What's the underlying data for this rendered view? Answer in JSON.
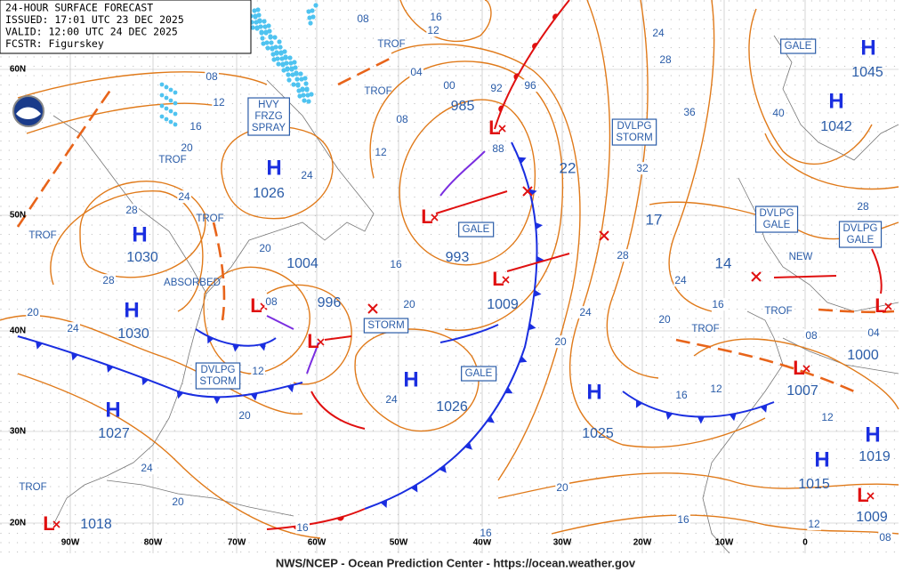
{
  "header": {
    "lines": [
      "24-HOUR SURFACE FORECAST",
      "ISSUED: 17:01 UTC 23 DEC 2025",
      "VALID: 12:00 UTC 24 DEC 2025",
      "FCSTR: Figurskey"
    ]
  },
  "latitude_labels": [
    "60N",
    "50N",
    "40N",
    "30N",
    "20N"
  ],
  "longitude_labels": [
    "90W",
    "80W",
    "70W",
    "60W",
    "50W",
    "40W",
    "30W",
    "20W",
    "10W",
    "0"
  ],
  "highs": [
    {
      "symbol": "H",
      "pressure": 1026
    },
    {
      "symbol": "H",
      "pressure": 1030
    },
    {
      "symbol": "H",
      "pressure": 1030
    },
    {
      "symbol": "H",
      "pressure": 1027
    },
    {
      "symbol": "H",
      "pressure": 1026
    },
    {
      "symbol": "H",
      "pressure": 1025
    },
    {
      "symbol": "H",
      "pressure": 1045
    },
    {
      "symbol": "H",
      "pressure": 1042
    },
    {
      "symbol": "H",
      "pressure": 1019
    },
    {
      "symbol": "H",
      "pressure": 1015
    }
  ],
  "lows": [
    {
      "symbol": "L",
      "pressure": 985
    },
    {
      "symbol": "L",
      "pressure": 993
    },
    {
      "symbol": "L",
      "pressure": 1009
    },
    {
      "symbol": "L",
      "pressure": 996
    },
    {
      "symbol": "L",
      "pressure": 1004
    },
    {
      "symbol": "L",
      "pressure": 1007
    },
    {
      "symbol": "L",
      "pressure": 1000
    },
    {
      "symbol": "L",
      "pressure": 1009
    },
    {
      "symbol": "L",
      "pressure": 1018
    }
  ],
  "center_values": [
    22,
    17,
    14
  ],
  "boxed_labels": [
    {
      "lines": [
        "HVY",
        "FRZG",
        "SPRAY"
      ]
    },
    {
      "lines": [
        "DVLPG",
        "STORM"
      ]
    },
    {
      "lines": [
        "GALE"
      ]
    },
    {
      "lines": [
        "STORM"
      ]
    },
    {
      "lines": [
        "GALE"
      ]
    },
    {
      "lines": [
        "DVLPG",
        "STORM"
      ]
    },
    {
      "lines": [
        "DVLPG",
        "GALE"
      ]
    },
    {
      "lines": [
        "DVLPG",
        "GALE"
      ]
    },
    {
      "lines": [
        "GALE"
      ]
    }
  ],
  "map_labels": [
    "TROF",
    "TROF",
    "TROF",
    "TROF",
    "TROF",
    "TROF",
    "TROF",
    "TROF",
    "ABSORBED",
    "NEW"
  ],
  "isobar_labels": [
    "08",
    "16",
    "12",
    "04",
    "00",
    "08",
    "92",
    "96",
    "88",
    "24",
    "28",
    "36",
    "40",
    "32",
    "28",
    "28",
    "24",
    "24",
    "20",
    "20",
    "16",
    "08",
    "04",
    "16",
    "12",
    "12",
    "20",
    "16",
    "12",
    "08",
    "16",
    "16",
    "20",
    "24",
    "20",
    "24",
    "20",
    "16",
    "12",
    "24",
    "20",
    "28",
    "24",
    "20",
    "16",
    "12",
    "08",
    "28",
    "20",
    "24",
    "12",
    "08"
  ],
  "footer": "NWS/NCEP - Ocean Prediction Center - https://ocean.weather.gov"
}
